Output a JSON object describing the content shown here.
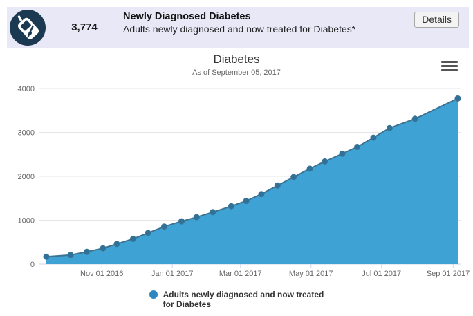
{
  "header": {
    "count": "3,774",
    "title": "Newly Diagnosed Diabetes",
    "subtitle": "Adults newly diagnosed and now treated for Diabetes*",
    "details_label": "Details",
    "bg_color": "#e8e8f7",
    "icon": "glucometer-icon",
    "icon_bg": "#1b3a52"
  },
  "chart_data": {
    "type": "area",
    "title": "Diabetes",
    "subtitle": "As of September 05, 2017",
    "ylabel": "",
    "xlabel": "",
    "ylim": [
      0,
      4000
    ],
    "yticks": [
      0,
      1000,
      2000,
      3000,
      4000
    ],
    "xticks": [
      {
        "date": "2016-11-01",
        "label": "Nov 01 2016"
      },
      {
        "date": "2017-01-01",
        "label": "Jan 01 2017"
      },
      {
        "date": "2017-03-01",
        "label": "Mar 01 2017"
      },
      {
        "date": "2017-05-01",
        "label": "May 01 2017"
      },
      {
        "date": "2017-07-01",
        "label": "Jul 01 2017"
      },
      {
        "date": "2017-09-01",
        "label": "Sep 01 2017"
      }
    ],
    "grid": true,
    "legend_position": "bottom",
    "series": [
      {
        "name": "Adults newly diagnosed and now treated for Diabetes",
        "points": [
          [
            "2016-09-14",
            170
          ],
          [
            "2016-10-05",
            210
          ],
          [
            "2016-10-19",
            280
          ],
          [
            "2016-11-02",
            360
          ],
          [
            "2016-11-14",
            460
          ],
          [
            "2016-11-28",
            575
          ],
          [
            "2016-12-11",
            710
          ],
          [
            "2016-12-25",
            855
          ],
          [
            "2017-01-09",
            975
          ],
          [
            "2017-01-22",
            1070
          ],
          [
            "2017-02-05",
            1185
          ],
          [
            "2017-02-21",
            1320
          ],
          [
            "2017-03-06",
            1440
          ],
          [
            "2017-03-19",
            1595
          ],
          [
            "2017-04-02",
            1790
          ],
          [
            "2017-04-16",
            1985
          ],
          [
            "2017-04-30",
            2175
          ],
          [
            "2017-05-13",
            2340
          ],
          [
            "2017-05-28",
            2515
          ],
          [
            "2017-06-10",
            2670
          ],
          [
            "2017-06-24",
            2880
          ],
          [
            "2017-07-08",
            3100
          ],
          [
            "2017-07-30",
            3310
          ],
          [
            "2017-09-05",
            3774
          ]
        ]
      }
    ],
    "colors": {
      "area": "#3ea2d4",
      "line": "#3d7391",
      "marker": "#2f7199",
      "grid": "#e6e6e6",
      "axis": "#ccd6eb",
      "label": "#666666"
    },
    "legend": {
      "lines": [
        "Adults newly diagnosed and now treated",
        "for Diabetes"
      ],
      "marker_color": "#2d87be"
    }
  }
}
